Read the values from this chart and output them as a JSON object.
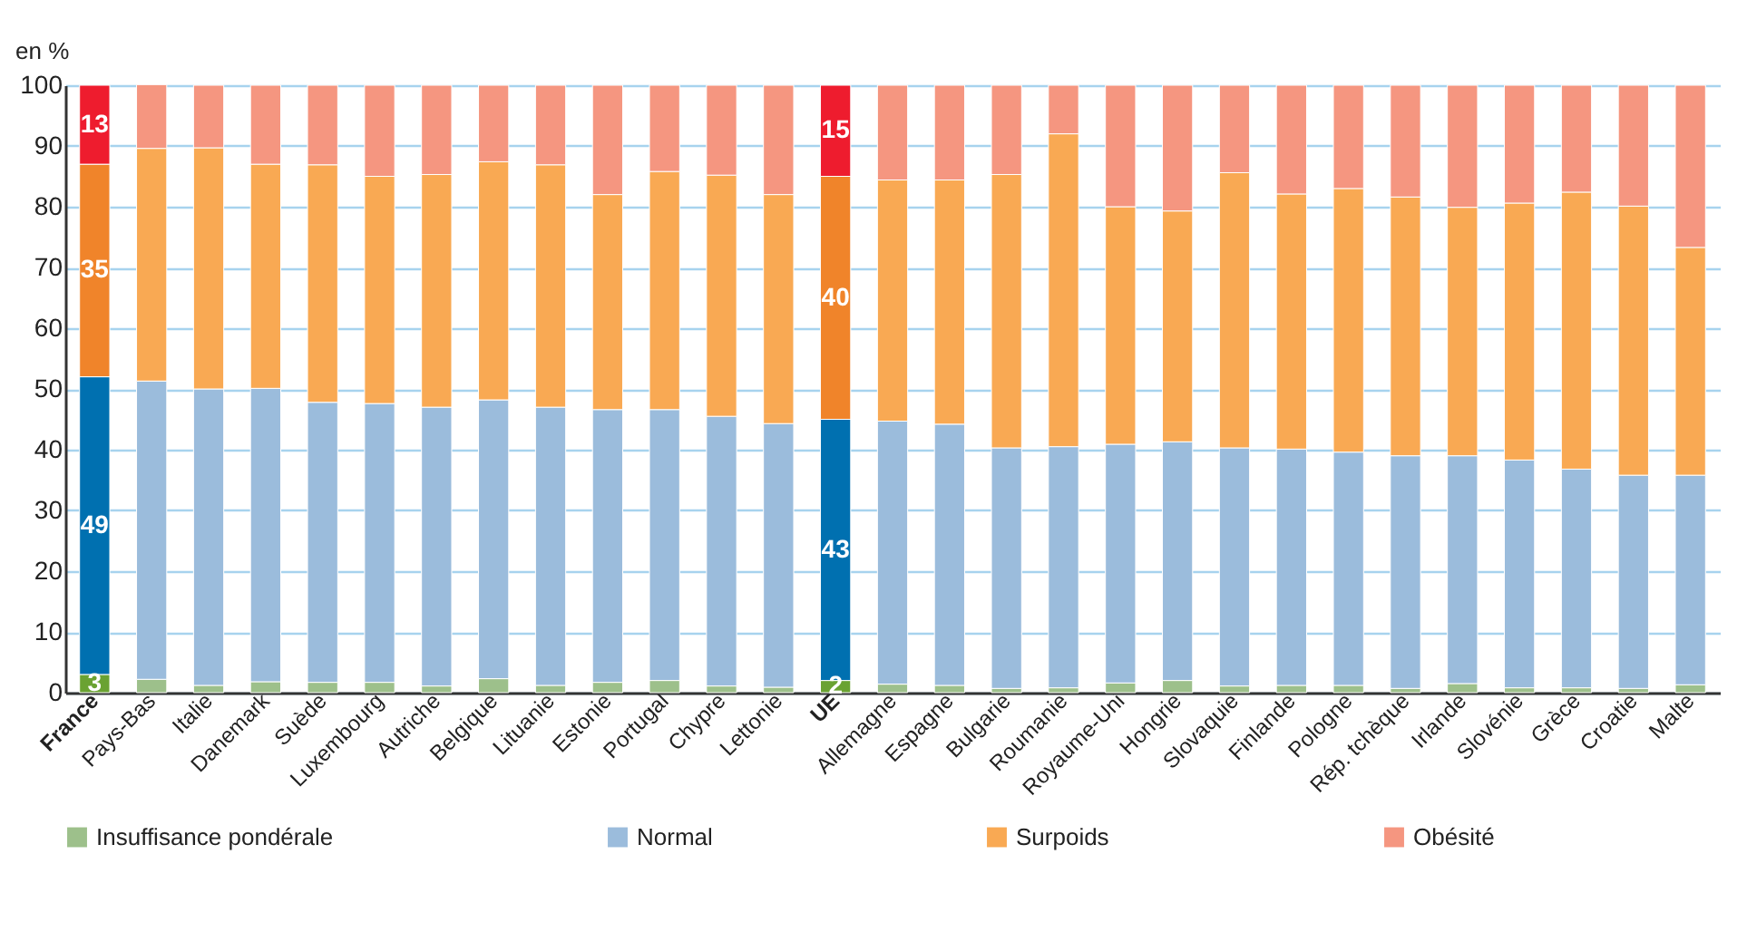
{
  "chart_data": {
    "type": "bar",
    "stacked": true,
    "ylabel": "en %",
    "ylim": [
      0,
      100
    ],
    "yticks": [
      0,
      10,
      20,
      30,
      40,
      50,
      60,
      70,
      80,
      90,
      100
    ],
    "grid": "y",
    "legend": "bottom",
    "categories": [
      "France",
      "Pays-Bas",
      "Italie",
      "Danemark",
      "Suède",
      "Luxembourg",
      "Autriche",
      "Belgique",
      "Lituanie",
      "Estonie",
      "Portugal",
      "Chypre",
      "Lettonie",
      "UE",
      "Allemagne",
      "Espagne",
      "Bulgarie",
      "Roumanie",
      "Royaume-Uni",
      "Hongrie",
      "Slovaquie",
      "Finlande",
      "Pologne",
      "Rép. tchèque",
      "Irlande",
      "Slovénie",
      "Grèce",
      "Croatie",
      "Malte"
    ],
    "series": [
      {
        "name": "Insuffisance pondérale",
        "color": "#9dc08b",
        "colors": [
          "#6aa232",
          "#9dc08b",
          "#9dc08b",
          "#9dc08b",
          "#9dc08b",
          "#9dc08b",
          "#9dc08b",
          "#9dc08b",
          "#9dc08b",
          "#9dc08b",
          "#9dc08b",
          "#9dc08b",
          "#9dc08b",
          "#6aa232",
          "#9dc08b",
          "#9dc08b",
          "#9dc08b",
          "#9dc08b",
          "#9dc08b",
          "#9dc08b",
          "#9dc08b",
          "#9dc08b",
          "#9dc08b",
          "#9dc08b",
          "#9dc08b",
          "#9dc08b",
          "#9dc08b",
          "#9dc08b",
          "#9dc08b"
        ],
        "values": [
          3,
          2.2,
          1.2,
          1.8,
          1.7,
          1.7,
          1.1,
          2.3,
          1.2,
          1.7,
          2.0,
          1.1,
          0.9,
          2,
          1.4,
          1.2,
          0.7,
          0.8,
          1.6,
          2.0,
          1.1,
          1.2,
          1.2,
          0.7,
          1.5,
          0.8,
          0.8,
          0.7,
          1.3
        ],
        "value_labels": [
          "3",
          null,
          null,
          null,
          null,
          null,
          null,
          null,
          null,
          null,
          null,
          null,
          null,
          "2",
          null,
          null,
          null,
          null,
          null,
          null,
          null,
          null,
          null,
          null,
          null,
          null,
          null,
          null,
          null
        ]
      },
      {
        "name": "Normal",
        "color": "#9bbcdc",
        "colors": [
          "#0070b0",
          "#9bbcdc",
          "#9bbcdc",
          "#9bbcdc",
          "#9bbcdc",
          "#9bbcdc",
          "#9bbcdc",
          "#9bbcdc",
          "#9bbcdc",
          "#9bbcdc",
          "#9bbcdc",
          "#9bbcdc",
          "#9bbcdc",
          "#0070b0",
          "#9bbcdc",
          "#9bbcdc",
          "#9bbcdc",
          "#9bbcdc",
          "#9bbcdc",
          "#9bbcdc",
          "#9bbcdc",
          "#9bbcdc",
          "#9bbcdc",
          "#9bbcdc",
          "#9bbcdc",
          "#9bbcdc",
          "#9bbcdc",
          "#9bbcdc",
          "#9bbcdc"
        ],
        "values": [
          49,
          49.1,
          48.8,
          48.3,
          46.1,
          45.9,
          45.9,
          45.9,
          45.8,
          44.9,
          44.6,
          44.4,
          43.4,
          43,
          43.3,
          43.0,
          39.6,
          39.7,
          39.3,
          39.3,
          39.2,
          38.9,
          38.4,
          38.3,
          37.5,
          37.5,
          36.0,
          35.1,
          34.5
        ],
        "value_labels": [
          "49",
          null,
          null,
          null,
          null,
          null,
          null,
          null,
          null,
          null,
          null,
          null,
          null,
          "43",
          null,
          null,
          null,
          null,
          null,
          null,
          null,
          null,
          null,
          null,
          null,
          null,
          null,
          null,
          null
        ]
      },
      {
        "name": "Surpoids",
        "color": "#f9a953",
        "colors": [
          "#f0842a",
          "#f9a953",
          "#f9a953",
          "#f9a953",
          "#f9a953",
          "#f9a953",
          "#f9a953",
          "#f9a953",
          "#f9a953",
          "#f9a953",
          "#f9a953",
          "#f9a953",
          "#f9a953",
          "#f0842a",
          "#f9a953",
          "#f9a953",
          "#f9a953",
          "#f9a953",
          "#f9a953",
          "#f9a953",
          "#f9a953",
          "#f9a953",
          "#f9a953",
          "#f9a953",
          "#f9a953",
          "#f9a953",
          "#f9a953",
          "#f9a953",
          "#f9a953"
        ],
        "values": [
          35,
          38.3,
          39.7,
          36.9,
          39.1,
          37.4,
          38.3,
          39.2,
          39.9,
          35.4,
          39.2,
          39.7,
          37.7,
          40,
          39.7,
          40.2,
          45.0,
          51.5,
          39.1,
          38.0,
          45.3,
          42.0,
          43.4,
          42.6,
          40.9,
          42.3,
          45.6,
          44.3,
          37.5
        ],
        "value_labels": [
          "35",
          null,
          null,
          null,
          null,
          null,
          null,
          null,
          null,
          null,
          null,
          null,
          null,
          "40",
          null,
          null,
          null,
          null,
          null,
          null,
          null,
          null,
          null,
          null,
          null,
          null,
          null,
          null,
          null
        ]
      },
      {
        "name": "Obésité",
        "color": "#f59680",
        "colors": [
          "#ee1c2e",
          "#f59680",
          "#f59680",
          "#f59680",
          "#f59680",
          "#f59680",
          "#f59680",
          "#f59680",
          "#f59680",
          "#f59680",
          "#f59680",
          "#f59680",
          "#f59680",
          "#ee1c2e",
          "#f59680",
          "#f59680",
          "#f59680",
          "#f59680",
          "#f59680",
          "#f59680",
          "#f59680",
          "#f59680",
          "#f59680",
          "#f59680",
          "#f59680",
          "#f59680",
          "#f59680",
          "#f59680",
          "#f59680"
        ],
        "values": [
          13,
          10.5,
          10.3,
          13.0,
          13.1,
          15.0,
          14.7,
          12.6,
          13.1,
          18.0,
          14.2,
          14.8,
          18.0,
          15,
          15.6,
          15.6,
          14.7,
          8.0,
          20.0,
          20.7,
          14.4,
          17.9,
          17.0,
          18.4,
          20.1,
          19.4,
          17.6,
          19.9,
          26.7
        ],
        "value_labels": [
          "13",
          null,
          null,
          null,
          null,
          null,
          null,
          null,
          null,
          null,
          null,
          null,
          null,
          "15",
          null,
          null,
          null,
          null,
          null,
          null,
          null,
          null,
          null,
          null,
          null,
          null,
          null,
          null,
          null
        ]
      }
    ]
  }
}
